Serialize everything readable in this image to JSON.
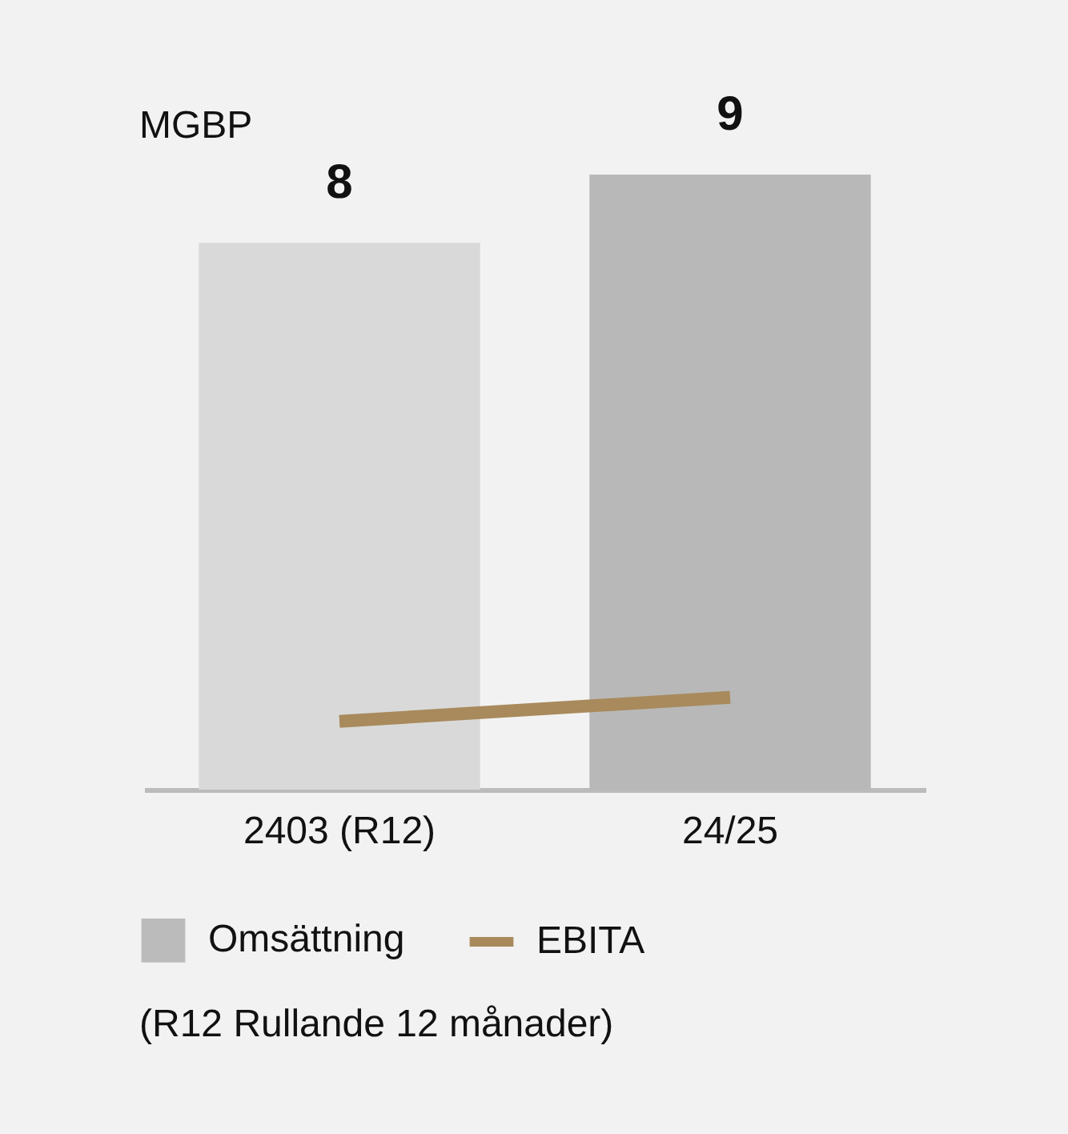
{
  "chart_data": {
    "type": "bar",
    "ylabel": "MGBP",
    "categories": [
      "2403 (R12)",
      "24/25"
    ],
    "legend": "bottom left",
    "grid": false,
    "series": [
      {
        "name": "Omsättning",
        "color": "#bbbbbb",
        "colors": [
          "#d9d9d9",
          "#b8b8b8"
        ],
        "values": [
          8,
          9
        ],
        "value_labels": [
          "8",
          "9"
        ]
      },
      {
        "name": "EBITA",
        "type": "line",
        "color": "#a88a5c",
        "values": [
          1.0,
          1.35
        ]
      }
    ],
    "annotations": [
      "(R12 Rullande 12 månader)"
    ]
  }
}
